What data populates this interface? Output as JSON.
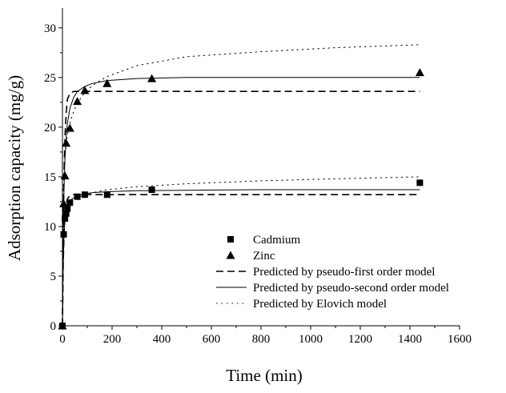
{
  "chart_data": {
    "type": "scatter",
    "title": "",
    "xlabel": "Time (min)",
    "ylabel": "Adsorption capacity (mg/g)",
    "xlim": [
      0,
      1600
    ],
    "ylim": [
      0,
      32
    ],
    "xticks": [
      0,
      200,
      400,
      600,
      800,
      1000,
      1200,
      1400,
      1600
    ],
    "yticks": [
      0,
      5,
      10,
      15,
      20,
      25,
      30
    ],
    "grid": false,
    "legend_position": "center-right",
    "series": [
      {
        "name": "Cadmium",
        "kind": "points",
        "marker": "square",
        "x": [
          0,
          5,
          10,
          15,
          20,
          30,
          60,
          90,
          180,
          360,
          1440
        ],
        "y": [
          0,
          9.2,
          10.8,
          11.3,
          11.8,
          12.4,
          13.0,
          13.2,
          13.2,
          13.7,
          14.4
        ]
      },
      {
        "name": "Zinc",
        "kind": "points",
        "marker": "triangle",
        "x": [
          0,
          5,
          10,
          15,
          30,
          60,
          90,
          180,
          360,
          1440
        ],
        "y": [
          0,
          12.3,
          15.1,
          18.4,
          19.9,
          22.6,
          23.7,
          24.4,
          24.9,
          25.5
        ]
      },
      {
        "name": "Predicted by pseudo-first order model",
        "kind": "curve",
        "dash": "dash",
        "x": [
          0,
          3,
          6,
          10,
          15,
          20,
          30,
          45,
          60,
          90,
          120,
          180,
          300,
          500,
          800,
          1100,
          1440
        ],
        "y_cadmium": [
          0,
          6.0,
          9.0,
          11.0,
          12.2,
          12.8,
          13.1,
          13.2,
          13.2,
          13.2,
          13.2,
          13.2,
          13.2,
          13.2,
          13.2,
          13.2,
          13.2
        ],
        "y_zinc": [
          0,
          9.5,
          15.0,
          19.0,
          21.5,
          22.8,
          23.4,
          23.6,
          23.6,
          23.6,
          23.6,
          23.6,
          23.6,
          23.6,
          23.6,
          23.6,
          23.6
        ]
      },
      {
        "name": "Predicted by pseudo-second order model",
        "kind": "curve",
        "dash": "solid",
        "x": [
          0,
          3,
          6,
          10,
          15,
          20,
          30,
          45,
          60,
          90,
          120,
          180,
          300,
          500,
          800,
          1100,
          1440
        ],
        "y_cadmium": [
          0,
          6.0,
          8.8,
          10.6,
          11.6,
          12.1,
          12.6,
          12.9,
          13.1,
          13.3,
          13.4,
          13.5,
          13.6,
          13.65,
          13.7,
          13.7,
          13.7
        ],
        "y_zinc": [
          0,
          9.0,
          13.5,
          16.8,
          19.0,
          20.4,
          21.9,
          23.0,
          23.6,
          24.1,
          24.4,
          24.7,
          24.9,
          25.0,
          25.0,
          25.0,
          25.0
        ]
      },
      {
        "name": "Predicted by Elovich model",
        "kind": "curve",
        "dash": "dot",
        "x": [
          0,
          3,
          6,
          10,
          15,
          20,
          30,
          45,
          60,
          90,
          120,
          180,
          300,
          500,
          800,
          1100,
          1440
        ],
        "y_cadmium": [
          0,
          9.0,
          10.2,
          10.9,
          11.4,
          11.8,
          12.2,
          12.6,
          12.9,
          13.2,
          13.4,
          13.7,
          14.0,
          14.3,
          14.6,
          14.8,
          15.0
        ],
        "y_zinc": [
          0,
          13.5,
          15.5,
          17.0,
          18.3,
          19.2,
          20.4,
          21.6,
          22.4,
          23.5,
          24.2,
          25.1,
          26.2,
          27.1,
          27.6,
          28.0,
          28.3
        ]
      }
    ]
  }
}
